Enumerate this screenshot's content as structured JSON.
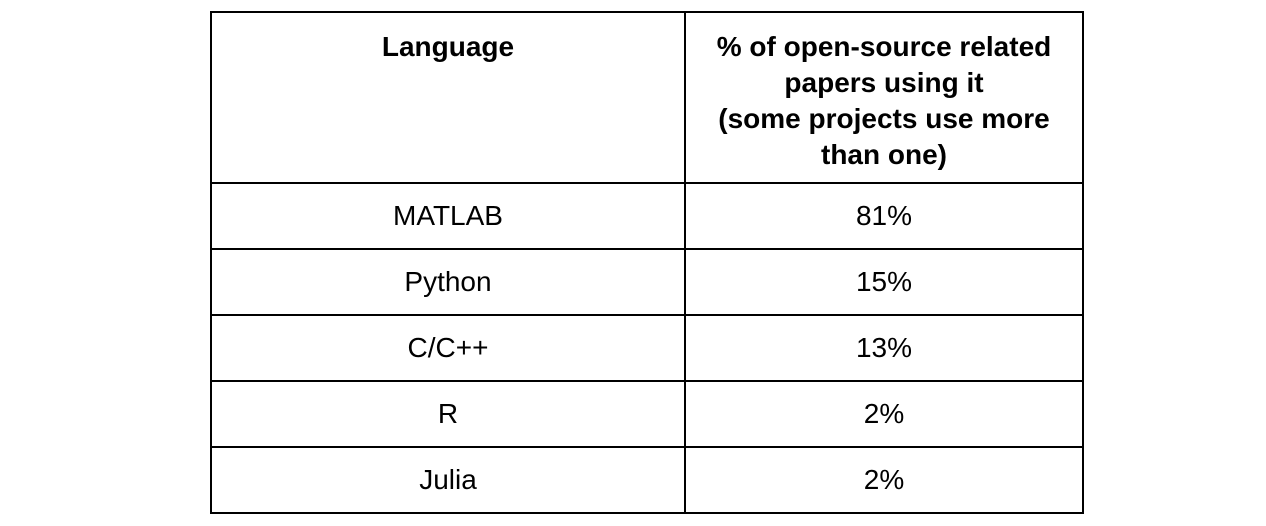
{
  "table": {
    "headers": {
      "language": "Language",
      "percent_lines": [
        "% of open-source related",
        "papers using it",
        "(some projects use more",
        "than one)"
      ]
    },
    "rows": [
      {
        "language": "MATLAB",
        "percent": "81%"
      },
      {
        "language": "Python",
        "percent": "15%"
      },
      {
        "language": "C/C++",
        "percent": "13%"
      },
      {
        "language": "R",
        "percent": "2%"
      },
      {
        "language": "Julia",
        "percent": "2%"
      }
    ]
  }
}
